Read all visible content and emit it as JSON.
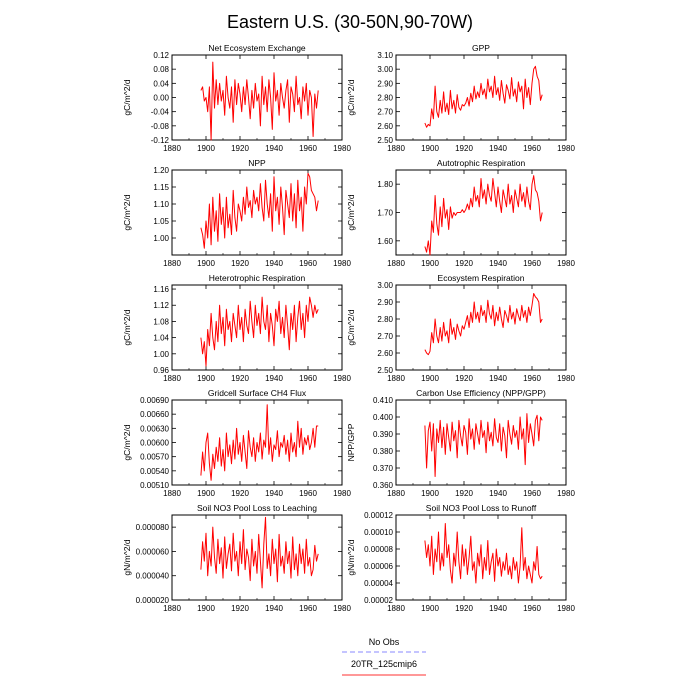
{
  "title": "Eastern U.S. (30-50N,90-70W)",
  "legend": {
    "placement": "bottom-center",
    "entries": [
      {
        "label": "No Obs",
        "color": "#8a8aff",
        "dash": true
      },
      {
        "label": "20TR_125cmip6",
        "color": "#ff3030",
        "dash": false
      }
    ]
  },
  "colors": {
    "series": "#ff0000"
  },
  "chart_data": [
    {
      "type": "line",
      "title": "Net Ecosystem Exchange",
      "ylabel": "gC/m^2/d",
      "xlim": [
        1880,
        1980
      ],
      "ylim": [
        -0.12,
        0.12
      ],
      "xticks": [
        "1880",
        "1900",
        "1920",
        "1940",
        "1960",
        "1980"
      ],
      "yticks": [
        "-0.12",
        "-0.08",
        "-0.04",
        "0.00",
        "0.04",
        "0.08",
        "0.12"
      ],
      "x_start": 1897,
      "values": [
        0.02,
        0.03,
        -0.01,
        0.0,
        -0.04,
        0.03,
        -0.12,
        0.1,
        -0.03,
        0.05,
        -0.02,
        0.04,
        -0.01,
        0.02,
        -0.05,
        0.06,
        0.0,
        -0.03,
        0.03,
        -0.07,
        0.05,
        -0.02,
        0.04,
        0.01,
        -0.04,
        0.03,
        -0.02,
        0.05,
        0.0,
        -0.06,
        0.02,
        -0.03,
        0.04,
        -0.01,
        0.01,
        -0.08,
        0.06,
        -0.02,
        0.03,
        -0.04,
        0.05,
        0.0,
        -0.09,
        0.07,
        -0.01,
        0.02,
        -0.05,
        0.04,
        0.0,
        -0.03,
        0.02,
        0.05,
        -0.07,
        0.03,
        0.01,
        -0.04,
        0.06,
        -0.02,
        0.0,
        -0.06,
        0.03,
        -0.01,
        0.04,
        -0.05,
        0.02,
        0.0,
        -0.11,
        0.01,
        -0.03,
        0.02
      ]
    },
    {
      "type": "line",
      "title": "GPP",
      "ylabel": "gC/m^2/d",
      "xlim": [
        1880,
        1980
      ],
      "ylim": [
        2.5,
        3.1
      ],
      "xticks": [
        "1880",
        "1900",
        "1920",
        "1940",
        "1960",
        "1980"
      ],
      "yticks": [
        "2.50",
        "2.60",
        "2.70",
        "2.80",
        "2.90",
        "3.00",
        "3.10"
      ],
      "x_start": 1897,
      "values": [
        2.62,
        2.59,
        2.61,
        2.6,
        2.72,
        2.65,
        2.88,
        2.7,
        2.66,
        2.78,
        2.69,
        2.84,
        2.7,
        2.76,
        2.68,
        2.85,
        2.72,
        2.78,
        2.69,
        2.82,
        2.73,
        2.71,
        2.75,
        2.74,
        2.76,
        2.8,
        2.74,
        2.83,
        2.77,
        2.88,
        2.79,
        2.84,
        2.8,
        2.9,
        2.82,
        2.86,
        2.79,
        2.93,
        2.84,
        2.88,
        2.8,
        2.95,
        2.82,
        2.87,
        2.78,
        2.92,
        2.83,
        2.76,
        2.89,
        2.85,
        2.79,
        2.94,
        2.81,
        2.86,
        2.77,
        2.91,
        2.84,
        2.88,
        2.72,
        2.93,
        2.8,
        2.87,
        2.75,
        2.9,
        3.0,
        3.02,
        2.95,
        2.92,
        2.78,
        2.82
      ]
    },
    {
      "type": "line",
      "title": "NPP",
      "ylabel": "gC/m^2/d",
      "xlim": [
        1880,
        1980
      ],
      "ylim": [
        0.95,
        1.2
      ],
      "xticks": [
        "1880",
        "1900",
        "1920",
        "1940",
        "1960",
        "1980"
      ],
      "yticks": [
        "1.00",
        "1.05",
        "1.10",
        "1.15",
        "1.20"
      ],
      "x_start": 1897,
      "values": [
        1.03,
        1.01,
        0.97,
        1.05,
        1.0,
        1.1,
        0.98,
        1.12,
        1.02,
        1.08,
        0.99,
        1.13,
        1.04,
        1.09,
        1.0,
        1.12,
        1.03,
        1.07,
        1.01,
        1.14,
        1.06,
        1.02,
        1.1,
        1.08,
        1.05,
        1.12,
        1.07,
        1.15,
        1.09,
        1.11,
        1.06,
        1.14,
        1.1,
        1.12,
        1.08,
        1.16,
        1.09,
        1.05,
        1.17,
        1.1,
        1.06,
        1.13,
        1.02,
        1.18,
        1.08,
        1.12,
        1.04,
        1.15,
        1.09,
        1.01,
        1.14,
        1.1,
        1.06,
        1.16,
        1.05,
        1.13,
        1.03,
        1.17,
        1.08,
        1.12,
        1.02,
        1.15,
        1.1,
        1.19,
        1.18,
        1.14,
        1.13,
        1.12,
        1.08,
        1.11
      ]
    },
    {
      "type": "line",
      "title": "Autotrophic Respiration",
      "ylabel": "gC/m^2/d",
      "xlim": [
        1880,
        1980
      ],
      "ylim": [
        1.55,
        1.85
      ],
      "xticks": [
        "1880",
        "1900",
        "1920",
        "1940",
        "1960",
        "1980"
      ],
      "yticks": [
        "1.60",
        "1.70",
        "1.80"
      ],
      "x_start": 1897,
      "values": [
        1.58,
        1.56,
        1.6,
        1.55,
        1.67,
        1.63,
        1.76,
        1.66,
        1.62,
        1.72,
        1.65,
        1.75,
        1.68,
        1.71,
        1.64,
        1.72,
        1.68,
        1.7,
        1.69,
        1.7,
        1.7,
        1.7,
        1.71,
        1.7,
        1.71,
        1.73,
        1.71,
        1.75,
        1.72,
        1.79,
        1.74,
        1.76,
        1.72,
        1.82,
        1.75,
        1.78,
        1.73,
        1.8,
        1.76,
        1.74,
        1.82,
        1.77,
        1.72,
        1.79,
        1.74,
        1.7,
        1.78,
        1.75,
        1.72,
        1.8,
        1.73,
        1.76,
        1.7,
        1.78,
        1.75,
        1.72,
        1.8,
        1.74,
        1.77,
        1.72,
        1.79,
        1.74,
        1.71,
        1.8,
        1.83,
        1.78,
        1.77,
        1.74,
        1.67,
        1.7
      ]
    },
    {
      "type": "line",
      "title": "Heterotrophic Respiration",
      "ylabel": "gC/m^2/d",
      "xlim": [
        1880,
        1980
      ],
      "ylim": [
        0.96,
        1.17
      ],
      "xticks": [
        "1880",
        "1900",
        "1920",
        "1940",
        "1960",
        "1980"
      ],
      "yticks": [
        "0.96",
        "1.00",
        "1.04",
        "1.08",
        "1.12",
        "1.16"
      ],
      "x_start": 1897,
      "values": [
        1.04,
        1.0,
        1.03,
        0.97,
        1.06,
        1.02,
        1.1,
        1.04,
        1.01,
        1.08,
        1.03,
        1.12,
        1.05,
        1.09,
        1.02,
        1.11,
        1.06,
        1.08,
        1.03,
        1.1,
        1.07,
        1.04,
        1.12,
        1.06,
        1.09,
        1.03,
        1.11,
        1.07,
        1.05,
        1.13,
        1.08,
        1.04,
        1.12,
        1.07,
        1.1,
        1.05,
        1.14,
        1.08,
        1.06,
        1.12,
        1.03,
        1.1,
        1.07,
        1.02,
        1.11,
        1.08,
        1.13,
        1.05,
        1.09,
        1.04,
        1.12,
        1.07,
        1.01,
        1.1,
        1.06,
        1.12,
        1.03,
        1.09,
        1.13,
        1.06,
        1.1,
        1.04,
        1.12,
        1.08,
        1.14,
        1.12,
        1.09,
        1.12,
        1.1,
        1.11
      ]
    },
    {
      "type": "line",
      "title": "Ecosystem Respiration",
      "ylabel": "gC/m^2/d",
      "xlim": [
        1880,
        1980
      ],
      "ylim": [
        2.5,
        3.0
      ],
      "xticks": [
        "1880",
        "1900",
        "1920",
        "1940",
        "1960",
        "1980"
      ],
      "yticks": [
        "2.50",
        "2.60",
        "2.70",
        "2.80",
        "2.90",
        "3.00"
      ],
      "x_start": 1897,
      "values": [
        2.62,
        2.6,
        2.59,
        2.61,
        2.72,
        2.66,
        2.8,
        2.7,
        2.66,
        2.75,
        2.67,
        2.78,
        2.7,
        2.73,
        2.66,
        2.8,
        2.71,
        2.75,
        2.68,
        2.77,
        2.73,
        2.7,
        2.76,
        2.74,
        2.78,
        2.82,
        2.75,
        2.84,
        2.78,
        2.9,
        2.8,
        2.84,
        2.78,
        2.88,
        2.82,
        2.85,
        2.78,
        2.91,
        2.83,
        2.8,
        2.88,
        2.76,
        2.84,
        2.79,
        2.87,
        2.8,
        2.75,
        2.85,
        2.82,
        2.78,
        2.88,
        2.8,
        2.84,
        2.77,
        2.86,
        2.82,
        2.79,
        2.88,
        2.81,
        2.85,
        2.78,
        2.87,
        2.82,
        2.88,
        2.95,
        2.93,
        2.92,
        2.9,
        2.78,
        2.8
      ]
    },
    {
      "type": "line",
      "title": "Gridcell Surface CH4 Flux",
      "ylabel": "gC/m^2/d",
      "xlim": [
        1880,
        1980
      ],
      "ylim": [
        0.0051,
        0.0069
      ],
      "xticks": [
        "1880",
        "1900",
        "1920",
        "1940",
        "1960",
        "1980"
      ],
      "yticks": [
        "0.00510",
        "0.00540",
        "0.00570",
        "0.00600",
        "0.00630",
        "0.00660",
        "0.00690"
      ],
      "x_start": 1897,
      "values": [
        0.0053,
        0.0058,
        0.0054,
        0.006,
        0.0062,
        0.00555,
        0.0052,
        0.00575,
        0.00545,
        0.0059,
        0.0056,
        0.0061,
        0.0055,
        0.00585,
        0.0054,
        0.0062,
        0.0057,
        0.00595,
        0.00555,
        0.00605,
        0.00565,
        0.0063,
        0.00575,
        0.006,
        0.0056,
        0.00615,
        0.0058,
        0.00545,
        0.00625,
        0.0059,
        0.0057,
        0.0061,
        0.0056,
        0.006,
        0.0058,
        0.0062,
        0.00565,
        0.00605,
        0.0059,
        0.0068,
        0.00575,
        0.0061,
        0.0056,
        0.00595,
        0.00585,
        0.00625,
        0.0057,
        0.006,
        0.0059,
        0.00615,
        0.00575,
        0.00605,
        0.0056,
        0.0062,
        0.0058,
        0.006,
        0.0057,
        0.00645,
        0.0059,
        0.0063,
        0.00575,
        0.0061,
        0.00595,
        0.00615,
        0.00585,
        0.006,
        0.0063,
        0.0059,
        0.00635,
        0.00635
      ]
    },
    {
      "type": "line",
      "title": "Carbon Use Efficiency (NPP/GPP)",
      "ylabel": "NPP/GPP",
      "xlim": [
        1880,
        1980
      ],
      "ylim": [
        0.36,
        0.41
      ],
      "xticks": [
        "1880",
        "1900",
        "1920",
        "1940",
        "1960",
        "1980"
      ],
      "yticks": [
        "0.360",
        "0.370",
        "0.380",
        "0.390",
        "0.400",
        "0.410"
      ],
      "x_start": 1897,
      "values": [
        0.395,
        0.37,
        0.392,
        0.397,
        0.38,
        0.396,
        0.365,
        0.393,
        0.385,
        0.398,
        0.382,
        0.394,
        0.378,
        0.396,
        0.388,
        0.38,
        0.397,
        0.386,
        0.392,
        0.376,
        0.398,
        0.389,
        0.383,
        0.395,
        0.391,
        0.378,
        0.399,
        0.387,
        0.393,
        0.381,
        0.396,
        0.39,
        0.384,
        0.398,
        0.388,
        0.392,
        0.379,
        0.397,
        0.386,
        0.391,
        0.383,
        0.399,
        0.388,
        0.385,
        0.396,
        0.38,
        0.394,
        0.389,
        0.376,
        0.398,
        0.39,
        0.384,
        0.395,
        0.388,
        0.392,
        0.381,
        0.4,
        0.387,
        0.393,
        0.372,
        0.402,
        0.385,
        0.396,
        0.39,
        0.383,
        0.398,
        0.401,
        0.386,
        0.4,
        0.398
      ]
    },
    {
      "type": "line",
      "title": "Soil NO3 Pool Loss to Leaching",
      "ylabel": "gN/m^2/d",
      "xlim": [
        1880,
        1980
      ],
      "ylim": [
        2e-05,
        9e-05
      ],
      "xticks": [
        "1880",
        "1900",
        "1920",
        "1940",
        "1960",
        "1980"
      ],
      "yticks": [
        "0.000020",
        "0.000040",
        "0.000060",
        "0.000080"
      ],
      "x_start": 1897,
      "values": [
        4.5e-05,
        6.8e-05,
        5.2e-05,
        7.5e-05,
        4e-05,
        6e-05,
        4.8e-05,
        8e-05,
        5.5e-05,
        4.2e-05,
        7e-05,
        5e-05,
        6.3e-05,
        3.8e-05,
        7.2e-05,
        4.6e-05,
        5.8e-05,
        6.6e-05,
        4.4e-05,
        7.5e-05,
        5.2e-05,
        6e-05,
        4e-05,
        6.8e-05,
        5e-05,
        7.8e-05,
        4.5e-05,
        6.2e-05,
        5.5e-05,
        3.6e-05,
        7e-05,
        4.8e-05,
        6e-05,
        4.2e-05,
        7.4e-05,
        5.2e-05,
        3e-05,
        6.6e-05,
        8.8e-05,
        4.6e-05,
        5.8e-05,
        4e-05,
        7e-05,
        5e-05,
        6.2e-05,
        3.5e-05,
        7.4e-05,
        4.8e-05,
        5.6e-05,
        4.2e-05,
        6.8e-05,
        5e-05,
        6e-05,
        3.8e-05,
        7.2e-05,
        4.5e-05,
        5.8e-05,
        4e-05,
        6.6e-05,
        5e-05,
        6.2e-05,
        4.2e-05,
        7e-05,
        4.8e-05,
        5.5e-05,
        4e-05,
        4.5e-05,
        6.5e-05,
        5.2e-05,
        5.8e-05
      ]
    },
    {
      "type": "line",
      "title": "Soil NO3 Pool Loss to Runoff",
      "ylabel": "gN/m^2/d",
      "xlim": [
        1880,
        1980
      ],
      "ylim": [
        2e-05,
        0.00012
      ],
      "xticks": [
        "1880",
        "1900",
        "1920",
        "1940",
        "1960",
        "1980"
      ],
      "yticks": [
        "0.00002",
        "0.00004",
        "0.00006",
        "0.00008",
        "0.00010",
        "0.00012"
      ],
      "x_start": 1897,
      "values": [
        9e-05,
        7e-05,
        8.5e-05,
        6e-05,
        9.5e-05,
        5e-05,
        8e-05,
        6.5e-05,
        0.0001,
        5.5e-05,
        7.5e-05,
        6e-05,
        0.00011,
        7e-05,
        8.5e-05,
        5.5e-05,
        4e-05,
        7.5e-05,
        6e-05,
        0.0001,
        6.5e-05,
        4.5e-05,
        8.5e-05,
        6e-05,
        8e-05,
        5e-05,
        7e-05,
        9.5e-05,
        5.5e-05,
        6.5e-05,
        4e-05,
        7.5e-05,
        6e-05,
        8.5e-05,
        4.5e-05,
        7e-05,
        5.5e-05,
        9e-05,
        5e-05,
        6.5e-05,
        7.5e-05,
        4.2e-05,
        8e-05,
        6e-05,
        7e-05,
        4.8e-05,
        6.5e-05,
        5.5e-05,
        7.5e-05,
        5e-05,
        6e-05,
        4.5e-05,
        7e-05,
        5.5e-05,
        6.5e-05,
        4e-05,
        6e-05,
        0.000105,
        5.5e-05,
        7e-05,
        4.5e-05,
        6e-05,
        5e-05,
        4e-05,
        6.5e-05,
        5.5e-05,
        8.3e-05,
        5e-05,
        4.5e-05,
        4.8e-05
      ]
    }
  ]
}
